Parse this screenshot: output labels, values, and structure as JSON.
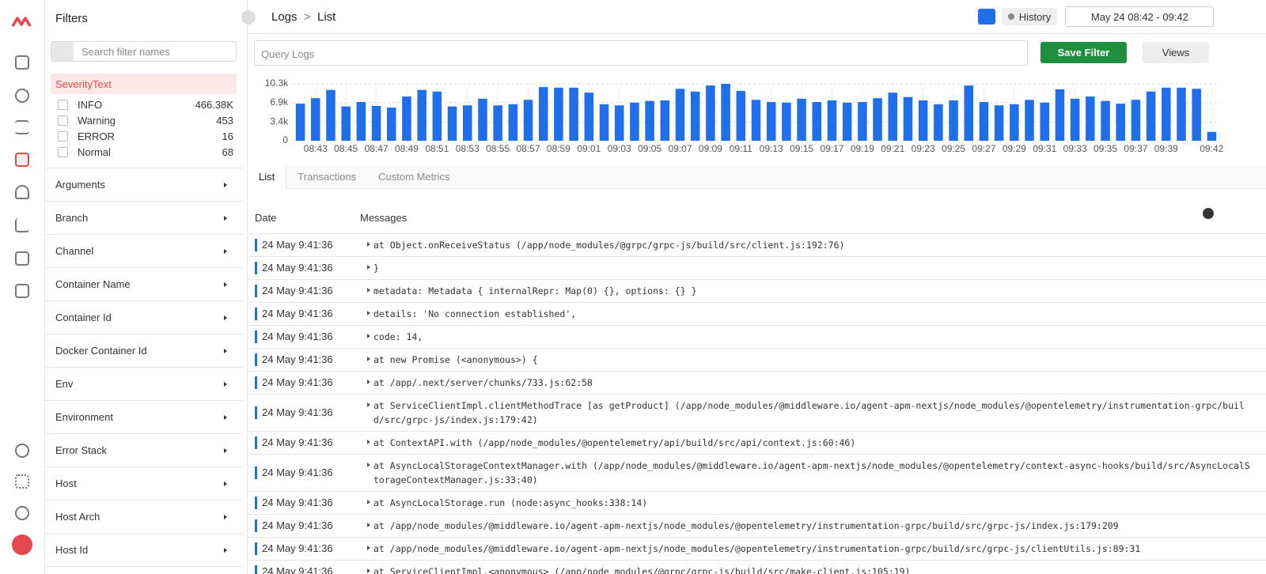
{
  "filters": {
    "title": "Filters",
    "search_placeholder": "Search filter names",
    "severity": {
      "label": "SeverityText",
      "options": [
        {
          "name": "INFO",
          "count": "466.38K"
        },
        {
          "name": "Warning",
          "count": 453
        },
        {
          "name": "ERROR",
          "count": 16
        },
        {
          "name": "Normal",
          "count": 68
        }
      ]
    },
    "groups": [
      "Arguments",
      "Branch",
      "Channel",
      "Container Name",
      "Container Id",
      "Docker Container Id",
      "Env",
      "Environment",
      "Error Stack",
      "Host",
      "Host Arch",
      "Host Id"
    ]
  },
  "header": {
    "breadcrumb": [
      "Logs",
      "List"
    ],
    "separator": ">",
    "history": "History",
    "time_range": "May 24 08:42 - 09:42"
  },
  "query": {
    "placeholder": "Query Logs",
    "save": "Save Filter",
    "views": "Views"
  },
  "chart_data": {
    "type": "bar",
    "color": "#1f6fea",
    "grid": true,
    "categories": [
      null,
      "08:43",
      null,
      "08:45",
      null,
      "08:47",
      null,
      "08:49",
      null,
      "08:51",
      null,
      "08:53",
      null,
      "08:55",
      null,
      "08:57",
      null,
      "08:59",
      null,
      "09:01",
      null,
      "09:03",
      null,
      "09:05",
      null,
      "09:07",
      null,
      "09:09",
      null,
      "09:11",
      null,
      "09:13",
      null,
      "09:15",
      null,
      "09:17",
      null,
      "09:19",
      null,
      "09:21",
      null,
      "09:23",
      null,
      "09:25",
      null,
      "09:27",
      null,
      "09:29",
      null,
      "09:31",
      null,
      "09:33",
      null,
      "09:35",
      null,
      "09:37",
      null,
      "09:39",
      null,
      null,
      "09:42"
    ],
    "values": [
      6700,
      7700,
      9200,
      6200,
      7000,
      6300,
      6000,
      8000,
      9200,
      8900,
      6200,
      6400,
      7600,
      6400,
      6600,
      7400,
      9700,
      9600,
      9600,
      8700,
      6600,
      6400,
      6900,
      7200,
      7300,
      9400,
      8900,
      10000,
      10300,
      9000,
      7400,
      7000,
      6900,
      7600,
      7000,
      7300,
      6900,
      7000,
      7700,
      8700,
      7900,
      7300,
      6600,
      7300,
      10000,
      7000,
      6400,
      6600,
      7400,
      6900,
      9300,
      7600,
      8000,
      7200,
      6700,
      7400,
      8900,
      9600,
      9600,
      9400,
      1600
    ],
    "ylim": [
      0,
      10300
    ],
    "yticks": [
      0,
      {
        "value": 3400,
        "label": "3.4k"
      },
      {
        "value": 6900,
        "label": "6.9k"
      },
      {
        "value": 10300,
        "label": "10.3k"
      }
    ]
  },
  "tabs": [
    "List",
    "Transactions",
    "Custom Metrics"
  ],
  "table": {
    "columns": [
      "Date",
      "Messages"
    ],
    "rows": [
      [
        "24 May 9:41:36",
        "at Object.onReceiveStatus (/app/node_modules/@grpc/grpc-js/build/src/client.js:192:76)"
      ],
      [
        "24 May 9:41:36",
        "}"
      ],
      [
        "24 May 9:41:36",
        "metadata: Metadata { internalRepr: Map(0) {}, options: {} }"
      ],
      [
        "24 May 9:41:36",
        "details: 'No connection established',"
      ],
      [
        "24 May 9:41:36",
        "code: 14,"
      ],
      [
        "24 May 9:41:36",
        "at new Promise (<anonymous>) {"
      ],
      [
        "24 May 9:41:36",
        "at /app/.next/server/chunks/733.js:62:58"
      ],
      [
        "24 May 9:41:36",
        "at ServiceClientImpl.clientMethodTrace [as getProduct] (/app/node_modules/@middleware.io/agent-apm-nextjs/node_modules/@opentelemetry/instrumentation-grpc/build/src/grpc-js/index.js:179:42)"
      ],
      [
        "24 May 9:41:36",
        "at ContextAPI.with (/app/node_modules/@opentelemetry/api/build/src/api/context.js:60:46)"
      ],
      [
        "24 May 9:41:36",
        "at AsyncLocalStorageContextManager.with (/app/node_modules/@middleware.io/agent-apm-nextjs/node_modules/@opentelemetry/context-async-hooks/build/src/AsyncLocalStorageContextManager.js:33:40)"
      ],
      [
        "24 May 9:41:36",
        "at AsyncLocalStorage.run (node:async_hooks:338:14)"
      ],
      [
        "24 May 9:41:36",
        "at /app/node_modules/@middleware.io/agent-apm-nextjs/node_modules/@opentelemetry/instrumentation-grpc/build/src/grpc-js/index.js:179:209"
      ],
      [
        "24 May 9:41:36",
        "at /app/node_modules/@middleware.io/agent-apm-nextjs/node_modules/@opentelemetry/instrumentation-grpc/build/src/grpc-js/clientUtils.js:89:31"
      ],
      [
        "24 May 9:41:36",
        "at ServiceClientImpl.<anonymous> (/app/node_modules/@grpc/grpc-js/build/src/make-client.js:105:19)"
      ]
    ]
  }
}
